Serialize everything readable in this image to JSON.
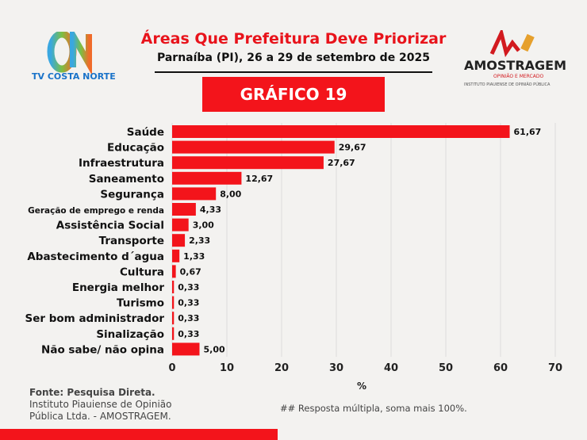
{
  "header": {
    "title": "Áreas Que Prefeitura Deve Priorizar",
    "subtitle": "Parnaíba (PI), 26 a 29 de setembro de 2025",
    "badge": "GRÁFICO 19"
  },
  "logos": {
    "left": "TV COSTA NORTE",
    "right": "AMOSTRAGEM",
    "right_tag": "OPINIÃO E MERCADO",
    "right_sub": "INSTITUTO PIAUIENSE DE OPINIÃO PÚBLICA"
  },
  "footer": {
    "source_bold": "Fonte: Pesquisa Direta.",
    "source_line1": "Instituto Piauiense de Opinião",
    "source_line2": "Pública Ltda. - AMOSTRAGEM.",
    "note": "## Resposta múltipla, soma mais 100%."
  },
  "colors": {
    "bar": "#f3141b",
    "accent": "#e8131b"
  },
  "chart_data": {
    "type": "bar",
    "orientation": "horizontal",
    "categories": [
      "Saúde",
      "Educação",
      "Infraestrutura",
      "Saneamento",
      "Segurança",
      "Geração de emprego e renda",
      "Assistência Social",
      "Transporte",
      "Abastecimento d´agua",
      "Cultura",
      "Energia melhor",
      "Turismo",
      "Ser bom administrador",
      "Sinalização",
      "Não sabe/ não opina"
    ],
    "values": [
      61.67,
      29.67,
      27.67,
      12.67,
      8.0,
      4.33,
      3.0,
      2.33,
      1.33,
      0.67,
      0.33,
      0.33,
      0.33,
      0.33,
      5.0
    ],
    "value_labels": [
      "61,67",
      "29,67",
      "27,67",
      "12,67",
      "8,00",
      "4,33",
      "3,00",
      "2,33",
      "1,33",
      "0,67",
      "0,33",
      "0,33",
      "0,33",
      "0,33",
      "5,00"
    ],
    "xlabel": "%",
    "xlim": [
      0,
      70
    ],
    "xticks": [
      0,
      10,
      20,
      30,
      40,
      50,
      60,
      70
    ],
    "grid": true
  }
}
